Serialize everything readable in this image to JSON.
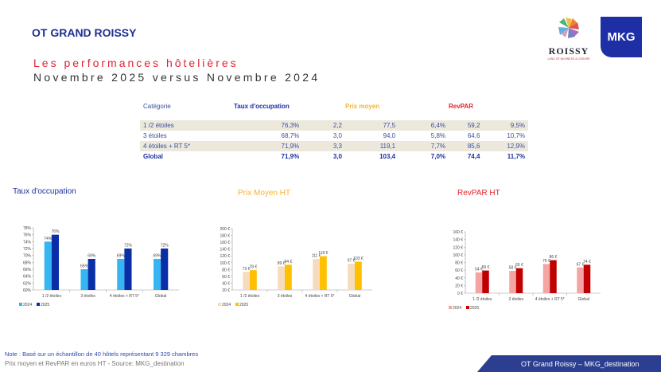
{
  "header": {
    "brand": "OT GRAND ROISSY",
    "title": "Les performances hôtelières",
    "subtitle": "Novembre 2025 versus Novembre 2024",
    "logo_roissy": "ROISSY",
    "logo_roissy_tag": "LAND OF BUSINESS & LEISURE",
    "logo_mkg": "MKG"
  },
  "table": {
    "headers": {
      "category": "Catégorie",
      "occupancy": "Taux d'occupation",
      "price": "Prix moyen",
      "revpar": "RevPAR"
    },
    "header_colors": {
      "occupancy": "#1a2fa0",
      "price": "#f5b335",
      "revpar": "#e0242f"
    },
    "rows": [
      [
        "1 /2 étoiles",
        "76,3%",
        "2,2",
        "77,5",
        "6,4%",
        "59,2",
        "9,5%"
      ],
      [
        "3 étoiles",
        "68,7%",
        "3,0",
        "94,0",
        "5,8%",
        "64,6",
        "10,7%"
      ],
      [
        "4 étoiles + RT 5*",
        "71,9%",
        "3,3",
        "119,1",
        "7,7%",
        "85,6",
        "12,9%"
      ],
      [
        "Global",
        "71,9%",
        "3,0",
        "103,4",
        "7,0%",
        "74,4",
        "11,7%"
      ]
    ]
  },
  "chart_data": [
    {
      "type": "bar",
      "title": "Taux d'occupation",
      "title_color": "#1a2fa0",
      "categories": [
        "1 /2 étoiles",
        "3 étoiles",
        "4 étoiles + RT 5*",
        "Global"
      ],
      "series": [
        {
          "name": "2024",
          "color": "#35b6f2",
          "values": [
            74,
            66,
            69,
            69
          ],
          "labels": [
            "74%",
            "66%",
            "69%",
            "69%"
          ]
        },
        {
          "name": "2025",
          "color": "#0a2ea8",
          "values": [
            76,
            69,
            72,
            72
          ],
          "labels": [
            "76%",
            "69%",
            "72%",
            "72%"
          ]
        }
      ],
      "ylim": [
        60,
        78
      ],
      "ystep": 2,
      "ticks": [
        "60%",
        "62%",
        "64%",
        "66%",
        "68%",
        "70%",
        "72%",
        "74%",
        "76%",
        "78%"
      ],
      "legend": "bottom-left"
    },
    {
      "type": "bar",
      "title": "Prix Moyen HT",
      "title_color": "#f5b335",
      "categories": [
        "1 /2 étoiles",
        "3 étoiles",
        "4 étoiles + RT 5*",
        "Global"
      ],
      "series": [
        {
          "name": "2024",
          "color": "#f6dcbc",
          "values": [
            73,
            89,
            111,
            97
          ],
          "labels": [
            "73 €",
            "89 €",
            "111 €",
            "97 €"
          ]
        },
        {
          "name": "2025",
          "color": "#ffc000",
          "values": [
            78,
            94,
            119,
            103
          ],
          "labels": [
            "78 €",
            "94 €",
            "119 €",
            "103 €"
          ]
        }
      ],
      "ylim": [
        20,
        200
      ],
      "ystep": 20,
      "ticks": [
        "20 €",
        "40 €",
        "60 €",
        "80 €",
        "100 €",
        "120 €",
        "140 €",
        "160 €",
        "180 €",
        "200 €"
      ],
      "legend": "bottom-left"
    },
    {
      "type": "bar",
      "title": "RevPAR HT",
      "title_color": "#e0242f",
      "categories": [
        "1 /2 étoiles",
        "3 étoiles",
        "4 étoiles + RT 5*",
        "Global"
      ],
      "series": [
        {
          "name": "2024",
          "color": "#f5a3a3",
          "values": [
            54,
            58,
            76,
            67
          ],
          "labels": [
            "54 €",
            "58 €",
            "76 €",
            "67 €"
          ]
        },
        {
          "name": "2025",
          "color": "#c00000",
          "values": [
            59,
            65,
            86,
            74
          ],
          "labels": [
            "59 €",
            "65 €",
            "86 €",
            "74 €"
          ]
        }
      ],
      "ylim": [
        0,
        160
      ],
      "ystep": 20,
      "ticks": [
        "0 €",
        "20 €",
        "40 €",
        "60 €",
        "80 €",
        "100 €",
        "120 €",
        "140 €",
        "160 €"
      ],
      "legend": "bottom-left"
    }
  ],
  "footer": {
    "note": "Note : Basé sur un échantillon de 40 hôtels représentant 9 329 chambres",
    "source": "Prix moyen et RevPAR en euros HT - Source: MKG_destination",
    "band": "OT Grand Roissy  – MKG_destination"
  }
}
